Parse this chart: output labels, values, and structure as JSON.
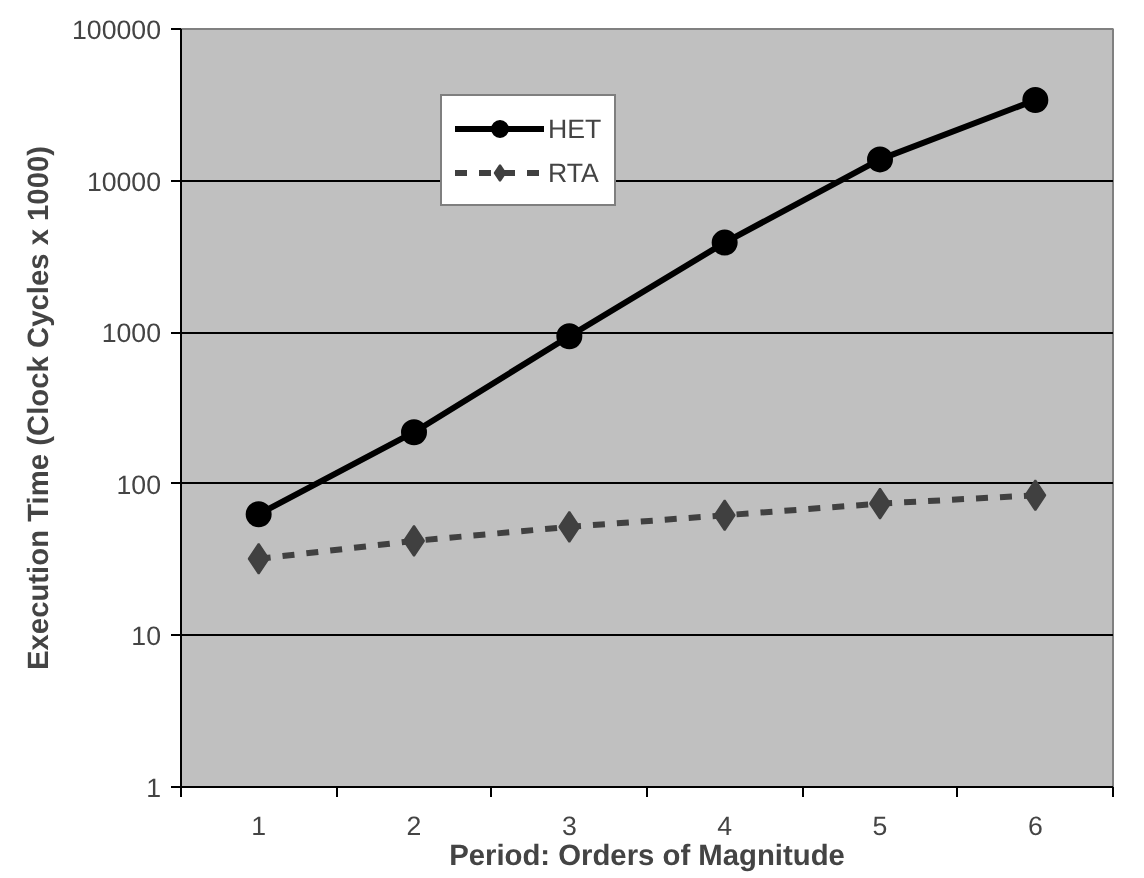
{
  "chart_data": {
    "type": "line",
    "xlabel": "Period: Orders of Magnitude",
    "ylabel": "Execution Time (Clock Cycles x 1000)",
    "categories": [
      "1",
      "2",
      "3",
      "4",
      "5",
      "6"
    ],
    "series": [
      {
        "name": "HET",
        "color": "#000000",
        "values": [
          63,
          219,
          940,
          3900,
          13800,
          34000
        ],
        "marker": "circle",
        "line_style": "solid"
      },
      {
        "name": "RTA",
        "color": "#404040",
        "values": [
          32,
          42,
          52,
          62,
          74,
          84
        ],
        "marker": "diamond",
        "line_style": "dashed"
      }
    ],
    "log": true,
    "ylim": [
      1,
      100000
    ],
    "yticks": [
      1,
      10,
      100,
      1000,
      10000,
      100000
    ],
    "grid": "y",
    "legend": "top center"
  }
}
